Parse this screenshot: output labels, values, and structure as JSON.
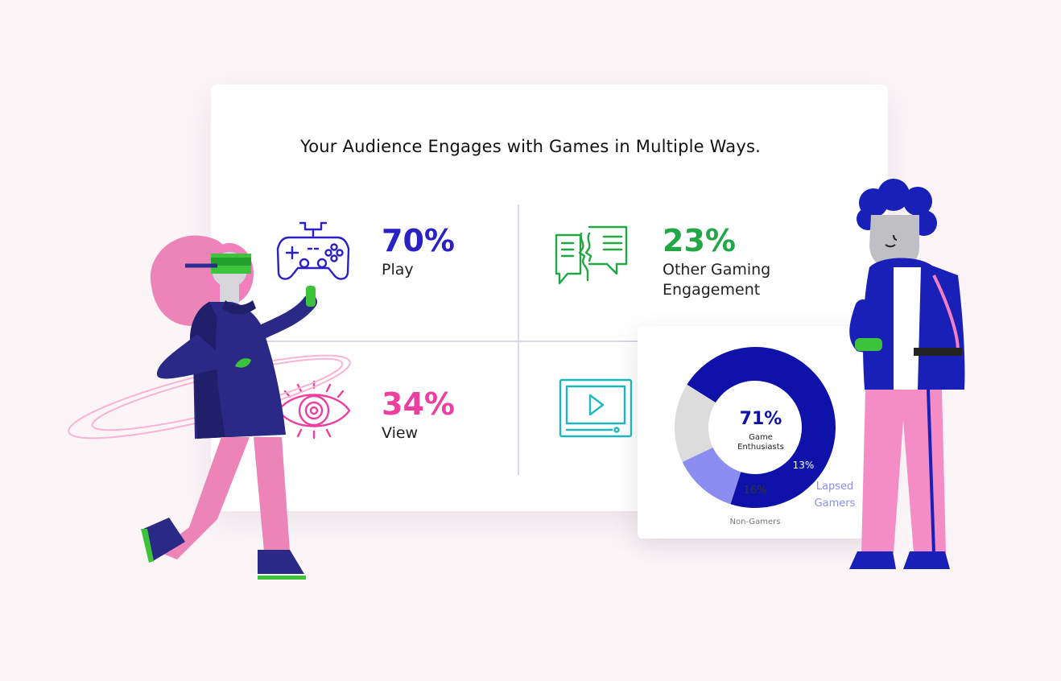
{
  "header": {
    "title": "Your Audience Engages with Games in Multiple Ways."
  },
  "stats": [
    {
      "value": "70%",
      "label": "Play",
      "color": "#2a21c4",
      "icon": "gamepad-icon"
    },
    {
      "value": "23%",
      "label_line1": "Other Gaming",
      "label_line2": "Engagement",
      "color": "#22a646",
      "icon": "chat-faces-icon"
    },
    {
      "value": "34%",
      "label": "View",
      "color": "#ec3fa0",
      "icon": "eye-icon"
    },
    {
      "icon": "video-player-icon",
      "color": "#1fb7bf"
    }
  ],
  "chart_data": {
    "type": "pie",
    "subtype": "donut",
    "segments": [
      {
        "label": "Game Enthusiasts",
        "value": 71,
        "display": "71%",
        "color": "#0f12a8"
      },
      {
        "label": "Lapsed Gamers",
        "value": 13,
        "display": "13%",
        "color": "#8b8ef0"
      },
      {
        "label": "Non-Gamers",
        "value": 16,
        "display": "16%",
        "color": "#dcdcdc"
      }
    ],
    "center_value": "71%",
    "center_label_line1": "Game",
    "center_label_line2": "Enthusiasts",
    "lapsed_line1": "Lapsed",
    "lapsed_line2": "Gamers",
    "non_gamers_label": "Non-Gamers"
  }
}
